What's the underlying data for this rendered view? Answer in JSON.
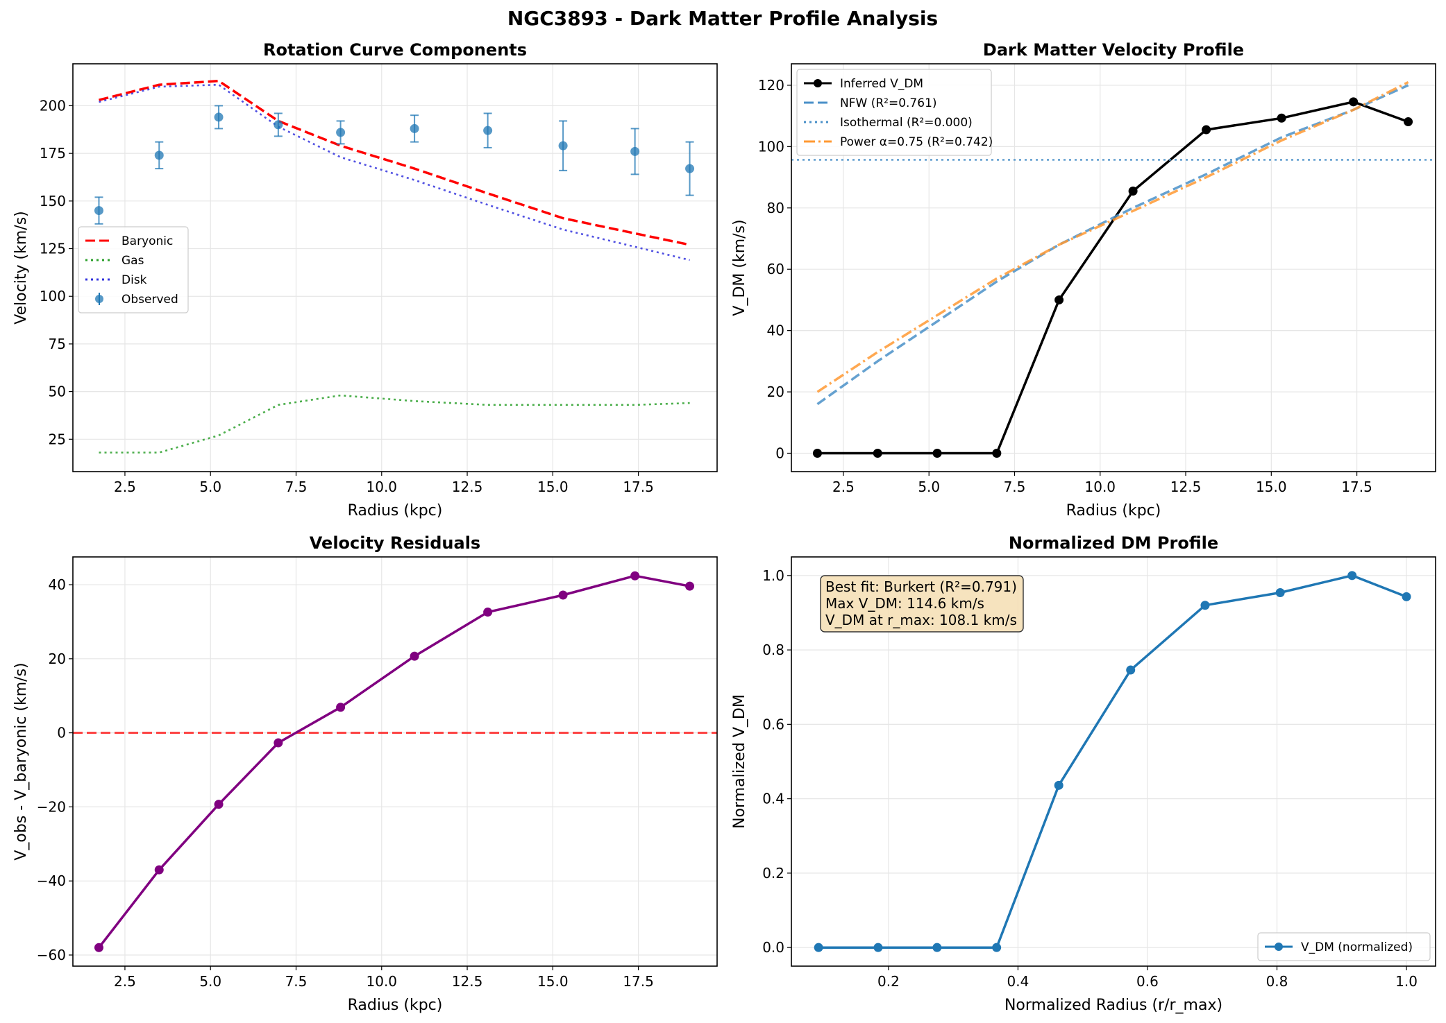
{
  "figure": {
    "title": "NGC3893 - Dark Matter Profile Analysis"
  },
  "chart_data": [
    {
      "id": "rotation",
      "type": "line",
      "title": "Rotation Curve Components",
      "xlabel": "Radius (kpc)",
      "ylabel": "Velocity (km/s)",
      "xlim": [
        0.98,
        19.8
      ],
      "ylim": [
        8,
        222
      ],
      "xticks": [
        "2.5",
        "5.0",
        "7.5",
        "10.0",
        "12.5",
        "15.0",
        "17.5"
      ],
      "yticks": [
        "25",
        "50",
        "75",
        "100",
        "125",
        "150",
        "175",
        "200"
      ],
      "grid": true,
      "legend": "center-left",
      "series": [
        {
          "name": "Baryonic",
          "color": "#ff0000",
          "style": "dashed",
          "x": [
            1.74,
            3.5,
            5.24,
            6.98,
            8.8,
            10.96,
            13.1,
            15.3,
            17.4,
            19.0
          ],
          "y": [
            203,
            211,
            213,
            192,
            179,
            167,
            154,
            141,
            133,
            127
          ]
        },
        {
          "name": "Gas",
          "color": "#2ca02c",
          "style": "dotted",
          "x": [
            1.74,
            3.5,
            5.24,
            6.98,
            8.8,
            10.96,
            13.1,
            15.3,
            17.4,
            19.0
          ],
          "y": [
            18,
            18,
            27,
            43,
            48,
            45,
            43,
            43,
            43,
            44
          ]
        },
        {
          "name": "Disk",
          "color": "#3333dd",
          "style": "dotted",
          "x": [
            1.74,
            3.5,
            5.24,
            6.98,
            8.8,
            10.96,
            13.1,
            15.3,
            17.4,
            19.0
          ],
          "y": [
            202,
            210,
            211,
            189,
            173,
            161,
            148,
            135,
            126,
            119
          ]
        },
        {
          "name": "Observed",
          "color": "#1f77b4",
          "style": "errorbar",
          "x": [
            1.74,
            3.5,
            5.24,
            6.98,
            8.8,
            10.96,
            13.1,
            15.3,
            17.4,
            19.0
          ],
          "y": [
            145,
            174,
            194,
            190,
            186,
            188,
            187,
            179,
            176,
            167
          ],
          "err": [
            7,
            7,
            6,
            6,
            6,
            7,
            9,
            13,
            12,
            14
          ]
        }
      ]
    },
    {
      "id": "dmprofile",
      "type": "line",
      "title": "Dark Matter Velocity Profile",
      "xlabel": "Radius (kpc)",
      "ylabel": "V_DM (km/s)",
      "xlim": [
        0.98,
        19.8
      ],
      "ylim": [
        -6,
        127
      ],
      "xticks": [
        "2.5",
        "5.0",
        "7.5",
        "10.0",
        "12.5",
        "15.0",
        "17.5"
      ],
      "yticks": [
        "0",
        "20",
        "40",
        "60",
        "80",
        "100",
        "120"
      ],
      "grid": true,
      "legend": "top-left",
      "series": [
        {
          "name": "Inferred V_DM",
          "color": "#000000",
          "style": "solid-markers",
          "x": [
            1.74,
            3.5,
            5.24,
            6.98,
            8.8,
            10.96,
            13.1,
            15.3,
            17.4,
            19.0
          ],
          "y": [
            0,
            0,
            0,
            0,
            50,
            85.5,
            105.5,
            109.3,
            114.6,
            108.1
          ]
        },
        {
          "name": "NFW (R²=0.761)",
          "color": "#4a90c8",
          "style": "dashed",
          "x": [
            1.74,
            3.5,
            5.24,
            6.98,
            8.8,
            10.96,
            13.1,
            15.3,
            17.4,
            19.0
          ],
          "y": [
            16,
            30,
            43,
            56,
            68,
            80,
            91,
            103,
            112,
            120
          ]
        },
        {
          "name": "Isothermal (R²=0.000)",
          "color": "#4a90c8",
          "style": "dotted",
          "x": [
            0.98,
            19.8
          ],
          "y": [
            95.7,
            95.7
          ]
        },
        {
          "name": "Power α=0.75 (R²=0.742)",
          "color": "#ff9933",
          "style": "dashdot",
          "x": [
            1.74,
            3.5,
            5.24,
            6.98,
            8.8,
            10.96,
            13.1,
            15.3,
            17.4,
            19.0
          ],
          "y": [
            20,
            33,
            45,
            57,
            68,
            79,
            90,
            102,
            112,
            121
          ]
        }
      ]
    },
    {
      "id": "residuals",
      "type": "line",
      "title": "Velocity Residuals",
      "xlabel": "Radius (kpc)",
      "ylabel": "V_obs - V_baryonic (km/s)",
      "xlim": [
        0.98,
        19.8
      ],
      "ylim": [
        -63,
        47.5
      ],
      "xticks": [
        "2.5",
        "5.0",
        "7.5",
        "10.0",
        "12.5",
        "15.0",
        "17.5"
      ],
      "yticks": [
        "−60",
        "−40",
        "−20",
        "0",
        "20",
        "40"
      ],
      "grid": true,
      "reference_line": {
        "y": 0,
        "color": "#ff0000",
        "style": "dashed"
      },
      "series": [
        {
          "color": "#800080",
          "style": "solid-markers",
          "x": [
            1.74,
            3.5,
            5.24,
            6.98,
            8.8,
            10.96,
            13.1,
            15.3,
            17.4,
            19.0
          ],
          "y": [
            -58,
            -37,
            -19.3,
            -2.7,
            6.9,
            20.7,
            32.6,
            37.2,
            42.4,
            39.6
          ]
        }
      ]
    },
    {
      "id": "normalized",
      "type": "line",
      "title": "Normalized DM Profile",
      "xlabel": "Normalized Radius (r/r_max)",
      "ylabel": "Normalized V_DM",
      "xlim": [
        0.05,
        1.045
      ],
      "ylim": [
        -0.05,
        1.05
      ],
      "xticks": [
        "0.2",
        "0.4",
        "0.6",
        "0.8",
        "1.0"
      ],
      "yticks": [
        "0.0",
        "0.2",
        "0.4",
        "0.6",
        "0.8",
        "1.0"
      ],
      "grid": true,
      "legend": "bottom-right",
      "annotation": [
        "Best fit: Burkert (R²=0.791)",
        "Max V_DM: 114.6 km/s",
        "V_DM at r_max: 108.1 km/s"
      ],
      "series": [
        {
          "name": "V_DM (normalized)",
          "color": "#1f77b4",
          "style": "solid-markers",
          "x": [
            0.092,
            0.184,
            0.275,
            0.367,
            0.463,
            0.574,
            0.689,
            0.805,
            0.916,
            1.0
          ],
          "y": [
            0,
            0,
            0,
            0,
            0.436,
            0.746,
            0.92,
            0.954,
            1.0,
            0.943
          ]
        }
      ]
    }
  ]
}
